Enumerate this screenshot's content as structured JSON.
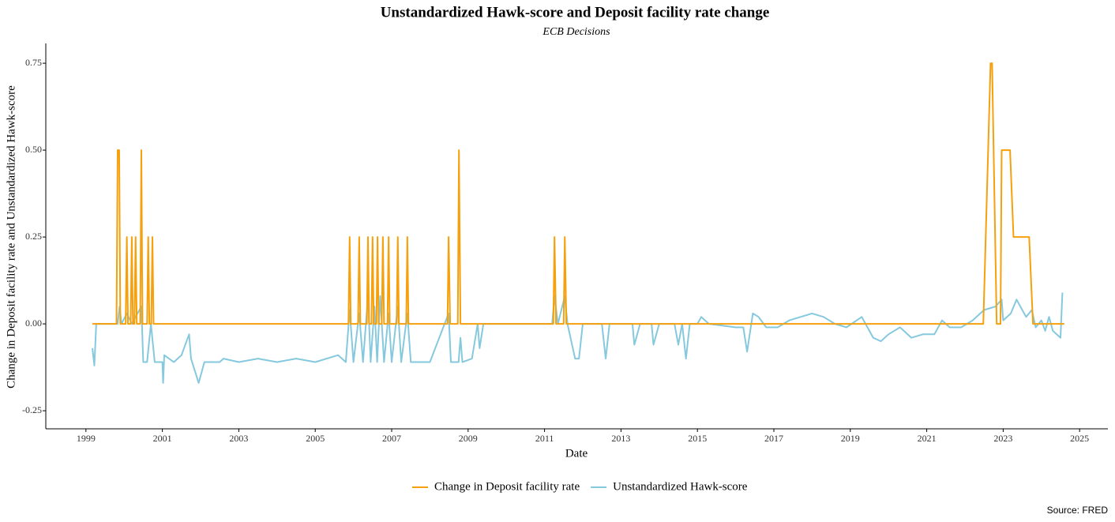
{
  "chart_data": {
    "type": "line",
    "title": "Unstandardized Hawk-score and Deposit facility rate change",
    "subtitle": "ECB Decisions",
    "x_label": "Date",
    "y_label": "Change in Deposit facility rate and Unstandardized Hawk-score",
    "source": "Source: FRED",
    "xlim": [
      1997.95,
      2025.74
    ],
    "xticks": [
      1999,
      2001,
      2003,
      2005,
      2007,
      2009,
      2011,
      2013,
      2015,
      2017,
      2019,
      2021,
      2023,
      2025
    ],
    "ylim": [
      -0.302,
      0.807
    ],
    "yticks": [
      -0.25,
      {
        "value": 0,
        "label": "0.00"
      },
      0.25,
      {
        "value": 0.5,
        "label": "0.50"
      },
      0.75
    ],
    "legend": "bottom",
    "series": [
      {
        "name": "Change in Deposit facility rate",
        "color": "#f5a00c",
        "x": [
          1999.17,
          1999.8,
          1999.83,
          1999.87,
          1999.9,
          2000.04,
          2000.07,
          2000.1,
          2000.17,
          2000.2,
          2000.23,
          2000.27,
          2000.3,
          2000.33,
          2000.42,
          2000.45,
          2000.48,
          2000.6,
          2000.63,
          2000.66,
          2000.71,
          2000.74,
          2000.77,
          2005.87,
          2005.9,
          2005.93,
          2006.12,
          2006.15,
          2006.18,
          2006.35,
          2006.38,
          2006.41,
          2006.47,
          2006.5,
          2006.53,
          2006.6,
          2006.63,
          2006.66,
          2006.74,
          2006.77,
          2006.8,
          2006.89,
          2006.92,
          2006.95,
          2007.13,
          2007.16,
          2007.19,
          2007.38,
          2007.41,
          2007.44,
          2008.46,
          2008.49,
          2008.53,
          2008.73,
          2008.76,
          2008.8,
          2011.23,
          2011.26,
          2011.3,
          2011.5,
          2011.53,
          2011.57,
          2022.48,
          2022.67,
          2022.71,
          2022.83,
          2022.93,
          2022.96,
          2023.18,
          2023.27,
          2023.68,
          2023.78,
          2024.6
        ],
        "values": [
          0,
          0,
          0.5,
          0.5,
          0,
          0,
          0.25,
          0,
          0,
          0.25,
          0,
          0,
          0.25,
          0,
          0,
          0.5,
          0,
          0,
          0.25,
          0,
          0,
          0.25,
          0,
          0,
          0.25,
          0,
          0,
          0.25,
          0,
          0,
          0.25,
          0,
          0,
          0.25,
          0,
          0,
          0.25,
          0,
          0,
          0.25,
          0,
          0,
          0.25,
          0,
          0,
          0.25,
          0,
          0,
          0.25,
          0,
          0,
          0.25,
          0,
          0,
          0.5,
          0,
          0,
          0.25,
          0,
          0,
          0.25,
          0,
          0,
          0.75,
          0.75,
          0,
          0,
          0.5,
          0.5,
          0.25,
          0.25,
          0,
          0
        ]
      },
      {
        "name": "Unstandardized Hawk-score",
        "color": "#86c9de",
        "x": [
          1999.17,
          1999.22,
          1999.27,
          1999.83,
          1999.88,
          1999.93,
          2000.07,
          2000.2,
          2000.45,
          2000.5,
          2000.6,
          2000.7,
          2000.8,
          2001.0,
          2001.02,
          2001.05,
          2001.3,
          2001.5,
          2001.7,
          2001.75,
          2001.95,
          2002.1,
          2002.5,
          2002.6,
          2003,
          2003.5,
          2004,
          2004.5,
          2005,
          2005.6,
          2005.8,
          2005.9,
          2006.0,
          2006.15,
          2006.25,
          2006.38,
          2006.45,
          2006.55,
          2006.62,
          2006.7,
          2006.8,
          2006.92,
          2007.0,
          2007.16,
          2007.25,
          2007.41,
          2007.5,
          2008,
          2008.49,
          2008.55,
          2008.75,
          2008.8,
          2008.85,
          2009.1,
          2009.25,
          2009.3,
          2009.4,
          2011.2,
          2011.26,
          2011.35,
          2011.53,
          2011.6,
          2011.8,
          2011.9,
          2012,
          2012.5,
          2012.6,
          2012.7,
          2013.3,
          2013.35,
          2013.5,
          2013.8,
          2013.85,
          2014,
          2014.4,
          2014.5,
          2014.6,
          2014.7,
          2014.8,
          2015,
          2015.1,
          2015.3,
          2016,
          2016.2,
          2016.3,
          2016.45,
          2016.6,
          2016.8,
          2017.1,
          2017.4,
          2017.7,
          2018,
          2018.3,
          2018.6,
          2018.9,
          2019.3,
          2019.6,
          2019.8,
          2020.0,
          2020.3,
          2020.6,
          2020.9,
          2021.2,
          2021.4,
          2021.6,
          2021.9,
          2022.2,
          2022.5,
          2022.8,
          2022.96,
          2023.0,
          2023.2,
          2023.35,
          2023.6,
          2023.75,
          2023.85,
          2024.0,
          2024.1,
          2024.2,
          2024.3,
          2024.5,
          2024.55
        ],
        "values": [
          -0.07,
          -0.12,
          0,
          0,
          0.05,
          0,
          0.03,
          0,
          0.05,
          -0.11,
          -0.11,
          0,
          -0.11,
          -0.11,
          -0.17,
          -0.09,
          -0.11,
          -0.09,
          -0.03,
          -0.1,
          -0.17,
          -0.11,
          -0.11,
          -0.1,
          -0.11,
          -0.1,
          -0.11,
          -0.1,
          -0.11,
          -0.09,
          -0.11,
          0.04,
          -0.11,
          0.03,
          -0.11,
          0.08,
          -0.11,
          0.05,
          -0.11,
          0.08,
          -0.11,
          0.03,
          -0.11,
          0.05,
          -0.11,
          0.03,
          -0.11,
          -0.11,
          0.03,
          -0.11,
          -0.11,
          -0.04,
          -0.11,
          -0.1,
          0,
          -0.07,
          0,
          0,
          0.08,
          0,
          0.08,
          0,
          -0.1,
          -0.1,
          0,
          0,
          -0.1,
          0,
          0,
          -0.06,
          0,
          0,
          -0.06,
          0,
          0,
          -0.06,
          0,
          -0.1,
          0,
          0,
          0.02,
          0,
          -0.01,
          -0.01,
          -0.08,
          0.03,
          0.02,
          -0.01,
          -0.01,
          0.01,
          0.02,
          0.03,
          0.02,
          0,
          -0.01,
          0.02,
          -0.04,
          -0.05,
          -0.03,
          -0.01,
          -0.04,
          -0.03,
          -0.03,
          0.01,
          -0.01,
          -0.01,
          0.01,
          0.04,
          0.05,
          0.07,
          0.01,
          0.03,
          0.07,
          0.02,
          0.04,
          -0.01,
          0.01,
          -0.02,
          0.02,
          -0.02,
          -0.04,
          0.09
        ]
      }
    ]
  }
}
